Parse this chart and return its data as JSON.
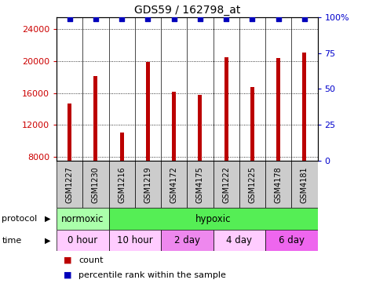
{
  "title": "GDS59 / 162798_at",
  "samples": [
    "GSM1227",
    "GSM1230",
    "GSM1216",
    "GSM1219",
    "GSM4172",
    "GSM4175",
    "GSM1222",
    "GSM1225",
    "GSM4178",
    "GSM4181"
  ],
  "counts": [
    14700,
    18100,
    11000,
    19900,
    16200,
    15800,
    20500,
    16700,
    20400,
    21100
  ],
  "percentiles": [
    99,
    99,
    99,
    99,
    99,
    99,
    99,
    99,
    99,
    99
  ],
  "ylim_left": [
    7500,
    25500
  ],
  "yticks_left": [
    8000,
    12000,
    16000,
    20000,
    24000
  ],
  "ylim_right": [
    0,
    100
  ],
  "yticks_right": [
    0,
    25,
    50,
    75,
    100
  ],
  "bar_color": "#bb0000",
  "dot_color": "#0000bb",
  "protocol_groups": [
    {
      "label": "normoxic",
      "start": 0,
      "end": 2,
      "color": "#aaffaa"
    },
    {
      "label": "hypoxic",
      "start": 2,
      "end": 10,
      "color": "#55ee55"
    }
  ],
  "time_groups": [
    {
      "label": "0 hour",
      "start": 0,
      "end": 2,
      "color": "#ffccff"
    },
    {
      "label": "10 hour",
      "start": 2,
      "end": 4,
      "color": "#ffccff"
    },
    {
      "label": "2 day",
      "start": 4,
      "end": 6,
      "color": "#ee88ee"
    },
    {
      "label": "4 day",
      "start": 6,
      "end": 8,
      "color": "#ffccff"
    },
    {
      "label": "6 day",
      "start": 8,
      "end": 10,
      "color": "#ee66ee"
    }
  ],
  "bar_width": 0.15,
  "ylabel_left_color": "#cc0000",
  "ylabel_right_color": "#0000cc",
  "bg_color": "#ffffff",
  "sample_box_color": "#cccccc",
  "normoxic_color": "#aaffaa",
  "hypoxic_color": "#55ee55"
}
